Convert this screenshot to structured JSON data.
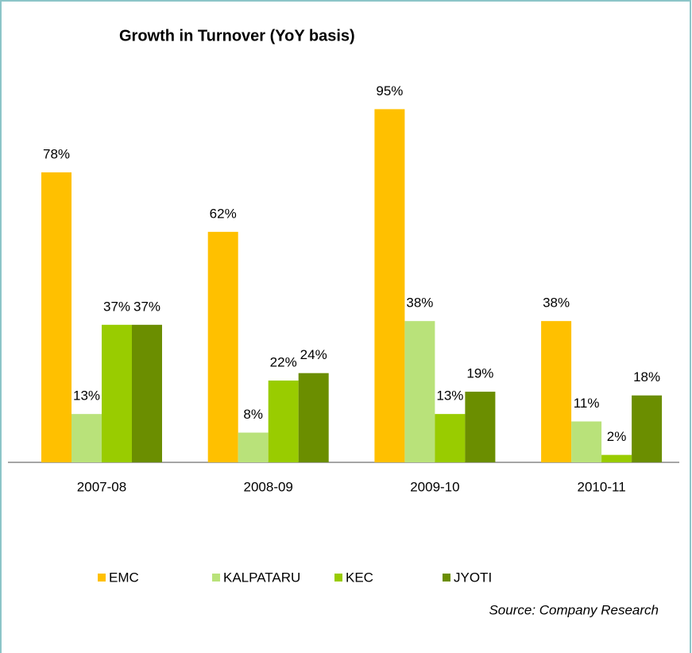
{
  "chart_data": {
    "type": "bar",
    "title": "Growth in Turnover (YoY basis)",
    "source": "Source: Company Research",
    "categories": [
      "2007-08",
      "2008-09",
      "2009-10",
      "2010-11"
    ],
    "series": [
      {
        "name": "EMC",
        "color": "#ffc000",
        "values": [
          78,
          62,
          95,
          38
        ],
        "value_labels": [
          "78%",
          "62%",
          "95%",
          "38%"
        ]
      },
      {
        "name": "KALPATARU",
        "color": "#b9e27a",
        "values": [
          13,
          8,
          38,
          11
        ],
        "value_labels": [
          "13%",
          "8%",
          "38%",
          "11%"
        ]
      },
      {
        "name": "KEC",
        "color": "#99cc00",
        "values": [
          37,
          22,
          13,
          2
        ],
        "value_labels": [
          "37%",
          "22%",
          "13%",
          "2%"
        ]
      },
      {
        "name": "JYOTI",
        "color": "#6b8e00",
        "values": [
          37,
          24,
          19,
          18
        ],
        "value_labels": [
          "37%",
          "24%",
          "19%",
          "18%"
        ]
      }
    ],
    "legend": "bottom"
  }
}
